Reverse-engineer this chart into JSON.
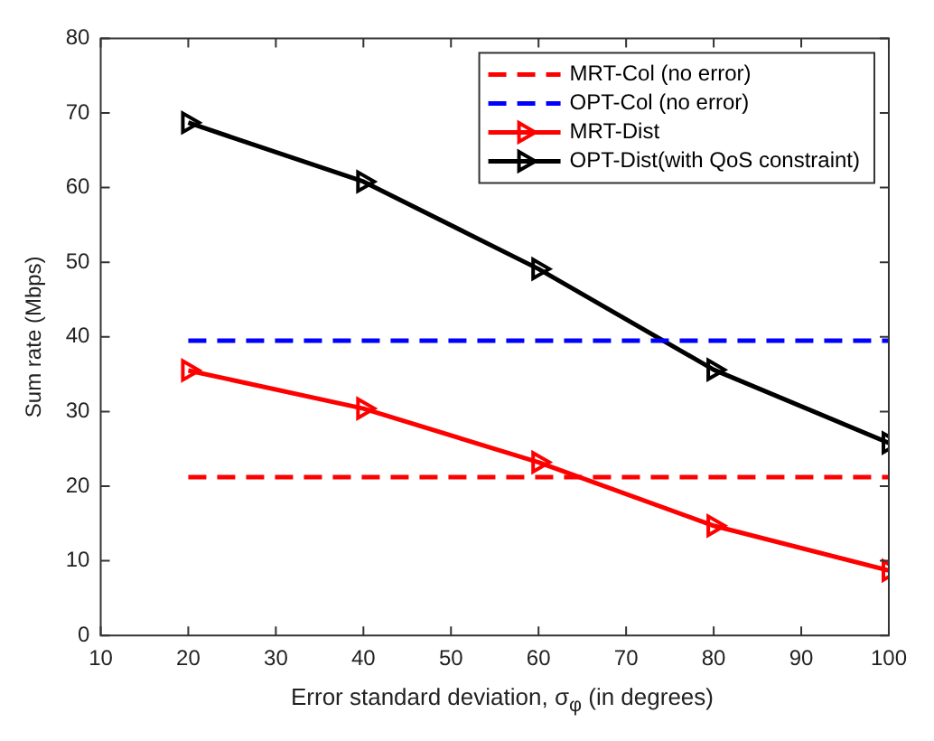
{
  "chart_data": {
    "type": "line",
    "xlabel": "Error standard deviation, σ$_{φ}$ (in degrees)",
    "ylabel": "Sum rate (Mbps)",
    "x": [
      20,
      40,
      60,
      80,
      100
    ],
    "xlim": [
      10,
      100
    ],
    "xticks": [
      10,
      20,
      30,
      40,
      50,
      60,
      70,
      80,
      90,
      100
    ],
    "ylim": [
      0,
      80
    ],
    "yticks": [
      0,
      10,
      20,
      30,
      40,
      50,
      60,
      70,
      80
    ],
    "grid": false,
    "legend": "top right",
    "series": [
      {
        "name": "MRT-Col (no error)",
        "color": "#ff0000",
        "values": [
          21.2,
          21.2,
          21.2,
          21.2,
          21.2
        ],
        "line_style": "dashed",
        "marker": "none"
      },
      {
        "name": "OPT-Col (no error)",
        "color": "#0000ff",
        "values": [
          39.5,
          39.5,
          39.5,
          39.5,
          39.5
        ],
        "line_style": "dashed",
        "marker": "none"
      },
      {
        "name": "MRT-Dist",
        "color": "#ff0000",
        "values": [
          35.5,
          30.4,
          23.2,
          14.7,
          8.7
        ],
        "line_style": "solid",
        "marker": "triangle"
      },
      {
        "name": "OPT-Dist(with QoS constraint)",
        "color": "#000000",
        "values": [
          68.7,
          60.8,
          49.1,
          35.6,
          25.8
        ],
        "line_style": "solid",
        "marker": "triangle"
      }
    ]
  }
}
